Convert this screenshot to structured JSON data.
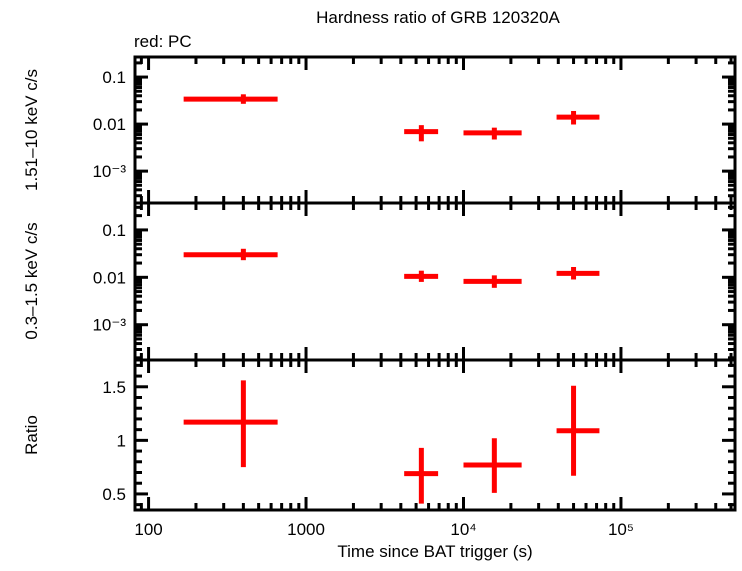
{
  "title": "Hardness ratio of GRB 120320A",
  "legend": {
    "label": "red: PC",
    "series_color": "#ff0000"
  },
  "colors": {
    "data": "#ff0000",
    "axis": "#000000",
    "background": "#ffffff"
  },
  "x_axis": {
    "label": "Time since BAT trigger (s)",
    "scale": "log",
    "range": [
      82,
      530000
    ],
    "ticks": [
      {
        "value": 100,
        "label": "100"
      },
      {
        "value": 1000,
        "label": "1000"
      },
      {
        "value": 10000,
        "label": "10⁴"
      },
      {
        "value": 100000,
        "label": "10⁵"
      }
    ]
  },
  "chart_data": [
    {
      "type": "scatter",
      "marker": "error-bar-cross",
      "name": "hard-band-rate",
      "ylabel": "1.51–10 keV c/s",
      "yscale": "log",
      "ylim": [
        0.00021,
        0.267
      ],
      "yticks": [
        {
          "value": 0.1,
          "label": "0.1"
        },
        {
          "value": 0.01,
          "label": "0.01"
        },
        {
          "value": 0.001,
          "label": "10⁻³"
        }
      ],
      "points": [
        {
          "x": 400,
          "x_lo": 167,
          "x_hi": 660,
          "y": 0.034,
          "y_lo": 0.027,
          "y_hi": 0.043
        },
        {
          "x": 5400,
          "x_lo": 4200,
          "x_hi": 6900,
          "y": 0.0069,
          "y_lo": 0.0043,
          "y_hi": 0.0095
        },
        {
          "x": 15700,
          "x_lo": 10000,
          "x_hi": 23400,
          "y": 0.0065,
          "y_lo": 0.0047,
          "y_hi": 0.0084
        },
        {
          "x": 50000,
          "x_lo": 39000,
          "x_hi": 73000,
          "y": 0.0141,
          "y_lo": 0.0098,
          "y_hi": 0.019
        }
      ]
    },
    {
      "type": "scatter",
      "marker": "error-bar-cross",
      "name": "soft-band-rate",
      "ylabel": "0.3–1.5 keV c/s",
      "yscale": "log",
      "ylim": [
        0.00018,
        0.37
      ],
      "yticks": [
        {
          "value": 0.1,
          "label": "0.1"
        },
        {
          "value": 0.01,
          "label": "0.01"
        },
        {
          "value": 0.001,
          "label": "10⁻³"
        }
      ],
      "points": [
        {
          "x": 400,
          "x_lo": 167,
          "x_hi": 660,
          "y": 0.03,
          "y_lo": 0.023,
          "y_hi": 0.04
        },
        {
          "x": 5400,
          "x_lo": 4200,
          "x_hi": 6900,
          "y": 0.0105,
          "y_lo": 0.008,
          "y_hi": 0.0138
        },
        {
          "x": 15700,
          "x_lo": 10000,
          "x_hi": 23400,
          "y": 0.0082,
          "y_lo": 0.006,
          "y_hi": 0.011
        },
        {
          "x": 50000,
          "x_lo": 39000,
          "x_hi": 73000,
          "y": 0.0121,
          "y_lo": 0.009,
          "y_hi": 0.0165
        }
      ]
    },
    {
      "type": "scatter",
      "marker": "error-bar-cross",
      "name": "hardness-ratio",
      "ylabel": "Ratio",
      "yscale": "linear",
      "ylim": [
        0.35,
        1.75
      ],
      "yticks": [
        {
          "value": 0.5,
          "label": "0.5"
        },
        {
          "value": 1,
          "label": "1"
        },
        {
          "value": 1.5,
          "label": "1.5"
        }
      ],
      "points": [
        {
          "x": 400,
          "x_lo": 167,
          "x_hi": 660,
          "y": 1.17,
          "y_lo": 0.75,
          "y_hi": 1.56
        },
        {
          "x": 5400,
          "x_lo": 4200,
          "x_hi": 6900,
          "y": 0.69,
          "y_lo": 0.41,
          "y_hi": 0.93
        },
        {
          "x": 15700,
          "x_lo": 10000,
          "x_hi": 23400,
          "y": 0.77,
          "y_lo": 0.51,
          "y_hi": 1.02
        },
        {
          "x": 50000,
          "x_lo": 39000,
          "x_hi": 73000,
          "y": 1.09,
          "y_lo": 0.67,
          "y_hi": 1.51
        }
      ]
    }
  ]
}
